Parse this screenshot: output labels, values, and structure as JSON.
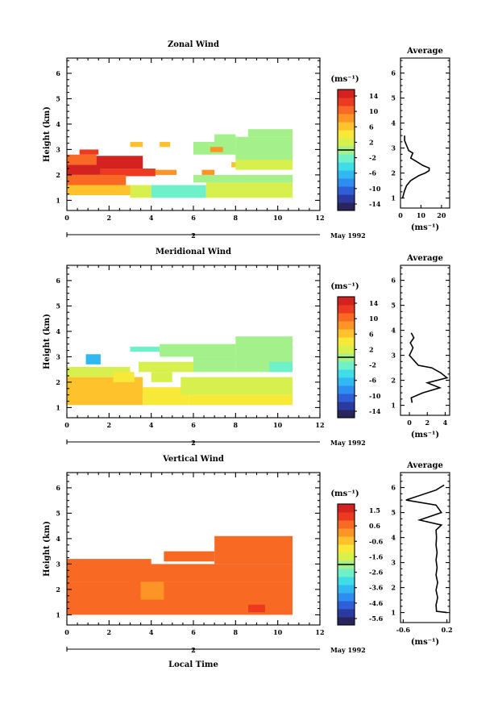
{
  "chart_data": [
    {
      "type": "heatmap",
      "title": "Zonal Wind",
      "ylabel": "Height (km)",
      "xlabel": "",
      "xlim": [
        0,
        12
      ],
      "ylim": [
        0.6,
        6.6
      ],
      "xticks": [
        "0",
        "2",
        "4",
        "6",
        "8",
        "10",
        "12"
      ],
      "yticks": [
        "1",
        "2",
        "3",
        "4",
        "5",
        "6"
      ],
      "date_label": "May 1992",
      "date_tick": "2",
      "colorbar": {
        "label": "(ms⁻¹)",
        "ticks": [
          "14",
          "10",
          "6",
          "2",
          "-2",
          "-6",
          "-10",
          "-14"
        ],
        "min": -16,
        "max": 16
      },
      "regions": [
        {
          "x": [
            0.0,
            1.4
          ],
          "y": [
            2.4,
            2.8
          ],
          "value": 10
        },
        {
          "x": [
            0.6,
            1.5
          ],
          "y": [
            2.8,
            3.0
          ],
          "value": 12
        },
        {
          "x": [
            1.4,
            3.6
          ],
          "y": [
            2.25,
            2.75
          ],
          "value": 15
        },
        {
          "x": [
            0.0,
            1.6
          ],
          "y": [
            2.0,
            2.4
          ],
          "value": 14
        },
        {
          "x": [
            1.6,
            4.2
          ],
          "y": [
            1.95,
            2.25
          ],
          "value": 13
        },
        {
          "x": [
            4.2,
            5.2
          ],
          "y": [
            2.0,
            2.2
          ],
          "value": 9
        },
        {
          "x": [
            0.0,
            2.8
          ],
          "y": [
            1.6,
            2.0
          ],
          "value": 10
        },
        {
          "x": [
            0.0,
            3.4
          ],
          "y": [
            1.2,
            1.6
          ],
          "value": 6
        },
        {
          "x": [
            3.0,
            4.0
          ],
          "y": [
            1.1,
            1.6
          ],
          "value": 2
        },
        {
          "x": [
            4.0,
            6.6
          ],
          "y": [
            1.1,
            1.6
          ],
          "value": -2
        },
        {
          "x": [
            6.6,
            10.7
          ],
          "y": [
            1.1,
            1.7
          ],
          "value": 3
        },
        {
          "x": [
            6.0,
            10.7
          ],
          "y": [
            1.7,
            2.0
          ],
          "value": 1
        },
        {
          "x": [
            3.0,
            3.6
          ],
          "y": [
            3.1,
            3.3
          ],
          "value": 7
        },
        {
          "x": [
            4.4,
            4.9
          ],
          "y": [
            3.1,
            3.3
          ],
          "value": 7
        },
        {
          "x": [
            6.4,
            7.0
          ],
          "y": [
            2.0,
            2.2
          ],
          "value": 8
        },
        {
          "x": [
            7.8,
            8.6
          ],
          "y": [
            2.3,
            2.5
          ],
          "value": 6
        },
        {
          "x": [
            8.0,
            10.7
          ],
          "y": [
            2.6,
            3.5
          ],
          "value": 0
        },
        {
          "x": [
            8.6,
            10.7
          ],
          "y": [
            3.5,
            3.8
          ],
          "value": -1
        },
        {
          "x": [
            6.0,
            8.0
          ],
          "y": [
            2.8,
            3.3
          ],
          "value": 1
        },
        {
          "x": [
            7.0,
            8.0
          ],
          "y": [
            3.3,
            3.6
          ],
          "value": 0
        },
        {
          "x": [
            8.0,
            10.7
          ],
          "y": [
            2.2,
            2.6
          ],
          "value": 2
        },
        {
          "x": [
            6.8,
            7.4
          ],
          "y": [
            2.9,
            3.1
          ],
          "value": 9
        }
      ],
      "average": {
        "xlim": [
          0,
          24
        ],
        "ylim": [
          0.6,
          6.6
        ],
        "xticks": [
          "0",
          "10",
          "20"
        ],
        "xlabel": "(ms⁻¹)",
        "x": [
          1,
          2,
          3,
          5,
          9,
          12,
          14,
          14,
          11,
          7,
          5,
          6,
          4,
          3,
          2,
          2
        ],
        "y": [
          1.0,
          1.3,
          1.5,
          1.7,
          1.9,
          2.0,
          2.1,
          2.2,
          2.3,
          2.5,
          2.6,
          2.8,
          2.9,
          3.1,
          3.3,
          3.5
        ]
      }
    },
    {
      "type": "heatmap",
      "title": "Meridional Wind",
      "ylabel": "Height (km)",
      "xlabel": "",
      "xlim": [
        0,
        12
      ],
      "ylim": [
        0.6,
        6.6
      ],
      "xticks": [
        "0",
        "2",
        "4",
        "6",
        "8",
        "10",
        "12"
      ],
      "yticks": [
        "1",
        "2",
        "3",
        "4",
        "5",
        "6"
      ],
      "date_label": "May 1992",
      "date_tick": "2",
      "colorbar": {
        "label": "(ms⁻¹)",
        "ticks": [
          "14",
          "10",
          "6",
          "2",
          "-2",
          "-6",
          "-10",
          "-14"
        ],
        "min": -16,
        "max": 16
      },
      "regions": [
        {
          "x": [
            0.0,
            3.0
          ],
          "y": [
            2.2,
            2.6
          ],
          "value": 3
        },
        {
          "x": [
            0.0,
            3.6
          ],
          "y": [
            1.6,
            2.2
          ],
          "value": 7
        },
        {
          "x": [
            0.0,
            3.6
          ],
          "y": [
            1.1,
            1.6
          ],
          "value": 6
        },
        {
          "x": [
            3.6,
            5.8
          ],
          "y": [
            1.1,
            1.8
          ],
          "value": 5
        },
        {
          "x": [
            5.8,
            10.7
          ],
          "y": [
            1.1,
            1.5
          ],
          "value": 5
        },
        {
          "x": [
            4.0,
            5.0
          ],
          "y": [
            2.0,
            2.4
          ],
          "value": 3
        },
        {
          "x": [
            5.4,
            10.7
          ],
          "y": [
            1.5,
            2.2
          ],
          "value": 3
        },
        {
          "x": [
            0.9,
            1.6
          ],
          "y": [
            2.7,
            3.1
          ],
          "value": -7
        },
        {
          "x": [
            3.0,
            4.4
          ],
          "y": [
            3.2,
            3.4
          ],
          "value": -3
        },
        {
          "x": [
            4.4,
            8.0
          ],
          "y": [
            3.0,
            3.5
          ],
          "value": 1
        },
        {
          "x": [
            8.0,
            10.7
          ],
          "y": [
            2.4,
            3.8
          ],
          "value": -1
        },
        {
          "x": [
            3.4,
            6.0
          ],
          "y": [
            2.4,
            2.8
          ],
          "value": 2
        },
        {
          "x": [
            6.0,
            8.0
          ],
          "y": [
            2.4,
            3.0
          ],
          "value": 0
        },
        {
          "x": [
            9.6,
            10.7
          ],
          "y": [
            2.4,
            2.8
          ],
          "value": -3
        },
        {
          "x": [
            2.2,
            3.2
          ],
          "y": [
            2.0,
            2.4
          ],
          "value": 4
        }
      ],
      "average": {
        "xlim": [
          -1,
          4.5
        ],
        "ylim": [
          0.6,
          6.6
        ],
        "xticks": [
          "0",
          "2",
          "4"
        ],
        "xlabel": "(ms⁻¹)",
        "x": [
          0.3,
          0.2,
          1.5,
          3.4,
          2.0,
          4.2,
          3.5,
          2.5,
          1.0,
          0.5,
          0.0,
          0.4,
          0.1,
          0.5,
          0.2
        ],
        "y": [
          1.1,
          1.3,
          1.5,
          1.7,
          1.9,
          2.1,
          2.3,
          2.5,
          2.6,
          2.8,
          3.0,
          3.3,
          3.5,
          3.7,
          3.9
        ]
      }
    },
    {
      "type": "heatmap",
      "title": "Vertical Wind",
      "ylabel": "Height (km)",
      "xlabel": "Local Time",
      "xlim": [
        0,
        12
      ],
      "ylim": [
        0.6,
        6.6
      ],
      "xticks": [
        "0",
        "2",
        "4",
        "6",
        "8",
        "10",
        "12"
      ],
      "yticks": [
        "1",
        "2",
        "3",
        "4",
        "5",
        "6"
      ],
      "date_label": "May 1992",
      "date_tick": "2",
      "colorbar": {
        "label": "(ms⁻¹)",
        "ticks": [
          "1.5",
          "0.6",
          "-0.6",
          "-1.6",
          "-2.6",
          "-3.6",
          "-4.6",
          "-5.6"
        ],
        "min": -6,
        "max": 2
      },
      "regions": [
        {
          "x": [
            0.0,
            10.7
          ],
          "y": [
            1.0,
            2.3
          ],
          "value": 0.5
        },
        {
          "x": [
            0.0,
            4.0
          ],
          "y": [
            2.3,
            3.2
          ],
          "value": 0.7
        },
        {
          "x": [
            3.0,
            10.7
          ],
          "y": [
            2.3,
            3.0
          ],
          "value": 0.6
        },
        {
          "x": [
            7.0,
            10.7
          ],
          "y": [
            3.0,
            4.1
          ],
          "value": 0.6
        },
        {
          "x": [
            4.6,
            7.0
          ],
          "y": [
            3.1,
            3.5
          ],
          "value": 0.7
        },
        {
          "x": [
            0.4,
            3.0
          ],
          "y": [
            1.2,
            2.0
          ],
          "value": 0.9
        },
        {
          "x": [
            4.0,
            6.0
          ],
          "y": [
            1.1,
            1.8
          ],
          "value": 0.8
        },
        {
          "x": [
            8.6,
            9.4
          ],
          "y": [
            1.1,
            1.4
          ],
          "value": 1.4
        },
        {
          "x": [
            3.5,
            4.6
          ],
          "y": [
            1.6,
            2.3
          ],
          "value": 0.3
        }
      ],
      "average": {
        "xlim": [
          -0.65,
          0.25
        ],
        "ylim": [
          0.6,
          6.6
        ],
        "xticks": [
          "-0.6",
          "0.2"
        ],
        "xlabel": "(ms⁻¹)",
        "x": [
          0.2,
          0.01,
          0.0,
          0.03,
          0.0,
          0.03,
          0.0,
          0.02,
          0.0,
          0.02,
          0.0,
          0.01,
          0.0,
          0.1,
          -0.3,
          0.1,
          0.0,
          -0.55,
          0.0,
          0.15
        ],
        "y": [
          1.0,
          1.05,
          1.3,
          1.6,
          1.9,
          2.2,
          2.5,
          2.8,
          3.1,
          3.4,
          3.7,
          4.0,
          4.3,
          4.5,
          4.7,
          5.0,
          5.3,
          5.5,
          5.9,
          6.1
        ]
      }
    }
  ]
}
